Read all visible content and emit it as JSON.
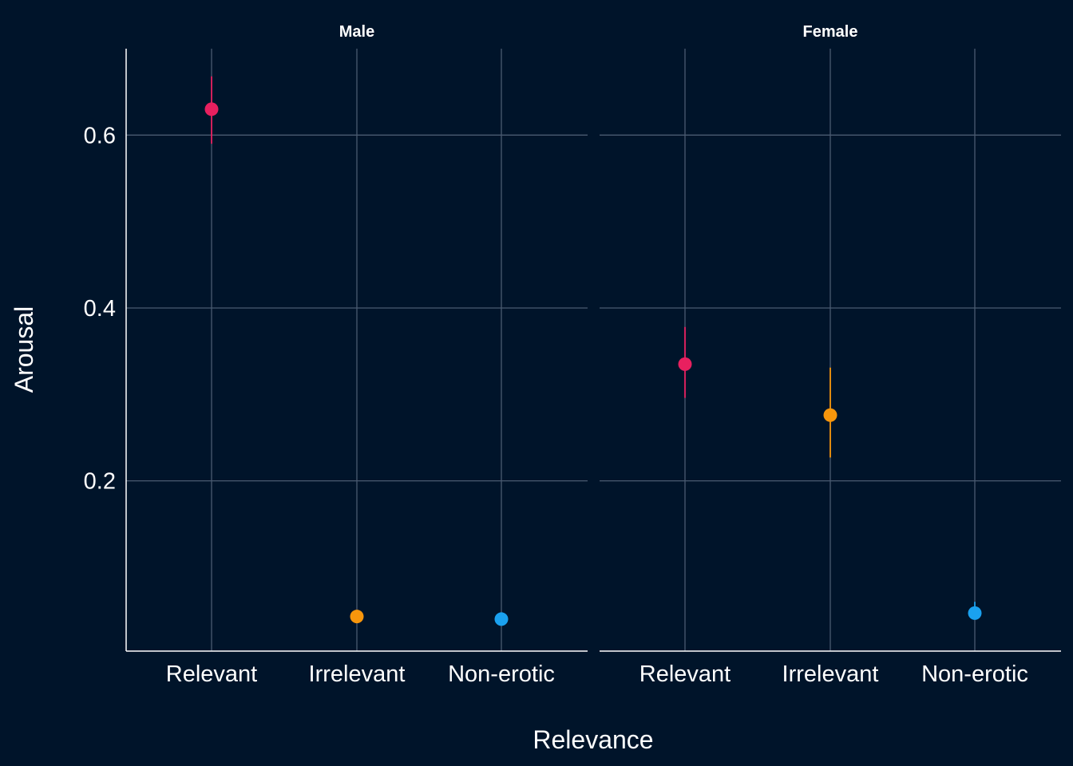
{
  "colors": {
    "background": "#00142a",
    "grid": "#4a5a70",
    "axis_line": "#ffffff",
    "text": "#ffffff"
  },
  "chart_data": {
    "type": "scatter",
    "subtype": "point-range (faceted)",
    "xlabel": "Relevance",
    "ylabel": "Arousal",
    "categories": [
      "Relevant",
      "Irrelevant",
      "Non-erotic"
    ],
    "category_colors": [
      "#e8205f",
      "#f7960c",
      "#1aa1ef"
    ],
    "ylim": [
      0.003,
      0.7
    ],
    "yticks": [
      0.2,
      0.4,
      0.6
    ],
    "ytick_labels": [
      "0.2",
      "0.4",
      "0.6"
    ],
    "grid": true,
    "legend": "none",
    "panels": [
      {
        "title": "Male",
        "points": [
          {
            "category": "Relevant",
            "y": 0.63,
            "low": 0.59,
            "high": 0.668
          },
          {
            "category": "Irrelevant",
            "y": 0.043,
            "low": 0.039,
            "high": 0.047
          },
          {
            "category": "Non-erotic",
            "y": 0.04,
            "low": 0.036,
            "high": 0.044
          }
        ]
      },
      {
        "title": "Female",
        "points": [
          {
            "category": "Relevant",
            "y": 0.335,
            "low": 0.296,
            "high": 0.378
          },
          {
            "category": "Irrelevant",
            "y": 0.276,
            "low": 0.227,
            "high": 0.331
          },
          {
            "category": "Non-erotic",
            "y": 0.047,
            "low": 0.04,
            "high": 0.06
          }
        ]
      }
    ]
  }
}
